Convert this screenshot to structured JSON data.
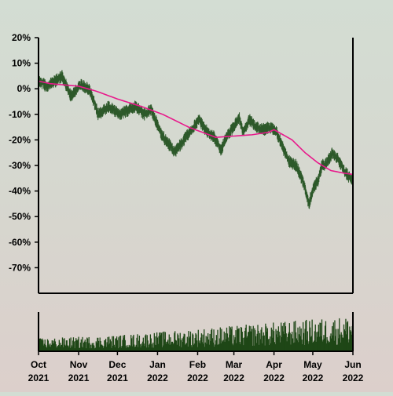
{
  "chart_data": {
    "type": "ohlc",
    "title": "",
    "xlabel": "",
    "ylabel": "",
    "x_range": [
      "2021-10-01",
      "2022-06-01"
    ],
    "ylim": [
      -80,
      20
    ],
    "y_ticks": [
      20,
      10,
      0,
      -10,
      -20,
      -30,
      -40,
      -50,
      -60,
      -70
    ],
    "y_tick_labels": [
      "20%",
      "10%",
      "0%",
      "-10%",
      "-20%",
      "-30%",
      "-40%",
      "-50%",
      "-60%",
      "-70%"
    ],
    "x_ticks": [
      {
        "date": "2021-10-01",
        "line1": "Oct",
        "line2": "2021"
      },
      {
        "date": "2021-11-01",
        "line1": "Nov",
        "line2": "2021"
      },
      {
        "date": "2021-12-01",
        "line1": "Dec",
        "line2": "2021"
      },
      {
        "date": "2022-01-01",
        "line1": "Jan",
        "line2": "2022"
      },
      {
        "date": "2022-02-01",
        "line1": "Feb",
        "line2": "2022"
      },
      {
        "date": "2022-03-01",
        "line1": "Mar",
        "line2": "2022"
      },
      {
        "date": "2022-04-01",
        "line1": "Apr",
        "line2": "2022"
      },
      {
        "date": "2022-05-01",
        "line1": "May",
        "line2": "2022"
      },
      {
        "date": "2022-06-01",
        "line1": "Jun",
        "line2": "2022"
      }
    ],
    "price_anchors": [
      {
        "date": "2021-10-01",
        "value": 3
      },
      {
        "date": "2021-10-08",
        "value": 1
      },
      {
        "date": "2021-10-19",
        "value": 5
      },
      {
        "date": "2021-10-26",
        "value": -3
      },
      {
        "date": "2021-11-03",
        "value": 2
      },
      {
        "date": "2021-11-10",
        "value": -1
      },
      {
        "date": "2021-11-16",
        "value": -10
      },
      {
        "date": "2021-11-24",
        "value": -7
      },
      {
        "date": "2021-12-03",
        "value": -10
      },
      {
        "date": "2021-12-15",
        "value": -7
      },
      {
        "date": "2021-12-22",
        "value": -10
      },
      {
        "date": "2021-12-27",
        "value": -8
      },
      {
        "date": "2022-01-04",
        "value": -18
      },
      {
        "date": "2022-01-10",
        "value": -22
      },
      {
        "date": "2022-01-14",
        "value": -25
      },
      {
        "date": "2022-01-20",
        "value": -21
      },
      {
        "date": "2022-01-26",
        "value": -17
      },
      {
        "date": "2022-02-02",
        "value": -12
      },
      {
        "date": "2022-02-07",
        "value": -16
      },
      {
        "date": "2022-02-14",
        "value": -19
      },
      {
        "date": "2022-02-19",
        "value": -24
      },
      {
        "date": "2022-02-24",
        "value": -18
      },
      {
        "date": "2022-03-01",
        "value": -15
      },
      {
        "date": "2022-03-05",
        "value": -11
      },
      {
        "date": "2022-03-08",
        "value": -17
      },
      {
        "date": "2022-03-13",
        "value": -12
      },
      {
        "date": "2022-03-18",
        "value": -15
      },
      {
        "date": "2022-03-24",
        "value": -16
      },
      {
        "date": "2022-03-30",
        "value": -15
      },
      {
        "date": "2022-04-03",
        "value": -17
      },
      {
        "date": "2022-04-07",
        "value": -22
      },
      {
        "date": "2022-04-12",
        "value": -28
      },
      {
        "date": "2022-04-18",
        "value": -30
      },
      {
        "date": "2022-04-24",
        "value": -37
      },
      {
        "date": "2022-04-28",
        "value": -45
      },
      {
        "date": "2022-05-02",
        "value": -38
      },
      {
        "date": "2022-05-05",
        "value": -36
      },
      {
        "date": "2022-05-08",
        "value": -30
      },
      {
        "date": "2022-05-12",
        "value": -29
      },
      {
        "date": "2022-05-16",
        "value": -25
      },
      {
        "date": "2022-05-20",
        "value": -27
      },
      {
        "date": "2022-05-24",
        "value": -31
      },
      {
        "date": "2022-05-28",
        "value": -34
      },
      {
        "date": "2022-06-01",
        "value": -36
      }
    ],
    "moving_average_anchors": [
      {
        "date": "2021-10-01",
        "value": 3
      },
      {
        "date": "2021-10-10",
        "value": 2
      },
      {
        "date": "2021-11-01",
        "value": 1
      },
      {
        "date": "2021-11-15",
        "value": -1
      },
      {
        "date": "2021-12-01",
        "value": -4
      },
      {
        "date": "2021-12-20",
        "value": -7
      },
      {
        "date": "2022-01-05",
        "value": -10
      },
      {
        "date": "2022-01-25",
        "value": -15
      },
      {
        "date": "2022-02-15",
        "value": -19
      },
      {
        "date": "2022-03-01",
        "value": -18.5
      },
      {
        "date": "2022-03-15",
        "value": -18
      },
      {
        "date": "2022-03-28",
        "value": -17
      },
      {
        "date": "2022-04-01",
        "value": -16
      },
      {
        "date": "2022-04-15",
        "value": -20
      },
      {
        "date": "2022-04-25",
        "value": -25
      },
      {
        "date": "2022-05-05",
        "value": -29
      },
      {
        "date": "2022-05-15",
        "value": -32
      },
      {
        "date": "2022-05-25",
        "value": -33
      },
      {
        "date": "2022-06-01",
        "value": -33.5
      }
    ],
    "volume": {
      "ylim": [
        0,
        1
      ],
      "anchors": [
        {
          "date": "2021-10-01",
          "value": 0.2
        },
        {
          "date": "2021-12-01",
          "value": 0.25
        },
        {
          "date": "2022-02-01",
          "value": 0.35
        },
        {
          "date": "2022-04-01",
          "value": 0.45
        },
        {
          "date": "2022-06-01",
          "value": 0.55
        }
      ]
    },
    "colors": {
      "price": "#2e5a2b",
      "moving_average": "#e8198b",
      "volume": "#1e4716",
      "axis": "#000000"
    }
  }
}
